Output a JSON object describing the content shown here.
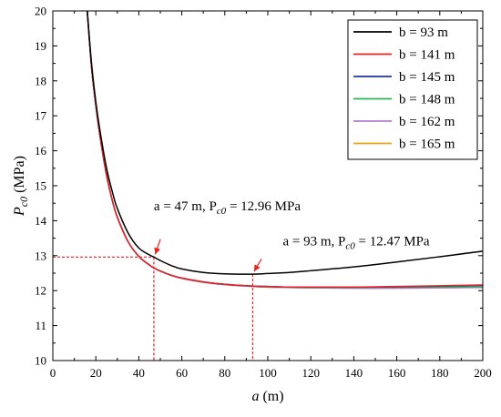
{
  "chart_data": {
    "type": "line",
    "title": "",
    "xlabel": "a",
    "xunit": "(m)",
    "ylabel_main": "P",
    "ylabel_sub": "c0",
    "yunit": "(MPa)",
    "xlim": [
      0,
      200
    ],
    "ylim": [
      10,
      20
    ],
    "xticks": [
      0,
      20,
      40,
      60,
      80,
      100,
      120,
      140,
      160,
      180,
      200
    ],
    "yticks": [
      10,
      11,
      12,
      13,
      14,
      15,
      16,
      17,
      18,
      19,
      20
    ],
    "grid": false,
    "legend_position": "top-right",
    "x": [
      16,
      18,
      20,
      22,
      25,
      28,
      30,
      35,
      40,
      45,
      47,
      50,
      55,
      60,
      70,
      80,
      93,
      100,
      110,
      120,
      140,
      160,
      180,
      200
    ],
    "series": [
      {
        "name": "b = 93 m",
        "color": "#000000",
        "values": [
          20.0,
          18.5,
          17.4,
          16.55,
          15.5,
          14.75,
          14.35,
          13.65,
          13.22,
          13.02,
          12.96,
          12.86,
          12.72,
          12.62,
          12.52,
          12.48,
          12.47,
          12.49,
          12.52,
          12.57,
          12.68,
          12.82,
          12.97,
          13.13
        ]
      },
      {
        "name": "b = 141 m",
        "color": "#e8231f",
        "values": [
          20.0,
          18.4,
          17.3,
          16.4,
          15.3,
          14.5,
          14.1,
          13.4,
          12.98,
          12.73,
          12.65,
          12.56,
          12.44,
          12.36,
          12.25,
          12.18,
          12.13,
          12.12,
          12.1,
          12.1,
          12.1,
          12.12,
          12.14,
          12.16
        ]
      },
      {
        "name": "b = 145 m",
        "color": "#1c2fc9",
        "values": [
          20.0,
          18.4,
          17.3,
          16.4,
          15.3,
          14.5,
          14.1,
          13.4,
          12.98,
          12.73,
          12.65,
          12.56,
          12.44,
          12.36,
          12.25,
          12.18,
          12.13,
          12.12,
          12.1,
          12.1,
          12.1,
          12.11,
          12.13,
          12.15
        ]
      },
      {
        "name": "b = 148 m",
        "color": "#2db35a",
        "values": [
          20.0,
          18.4,
          17.3,
          16.4,
          15.3,
          14.5,
          14.1,
          13.4,
          12.98,
          12.73,
          12.65,
          12.56,
          12.44,
          12.36,
          12.25,
          12.18,
          12.13,
          12.11,
          12.1,
          12.09,
          12.09,
          12.1,
          12.1,
          12.11
        ]
      },
      {
        "name": "b = 162 m",
        "color": "#b07fd4",
        "values": [
          20.0,
          18.4,
          17.3,
          16.4,
          15.3,
          14.5,
          14.1,
          13.4,
          12.98,
          12.73,
          12.65,
          12.56,
          12.44,
          12.35,
          12.24,
          12.17,
          12.12,
          12.1,
          12.09,
          12.08,
          12.07,
          12.07,
          12.08,
          12.09
        ]
      },
      {
        "name": "b = 165 m",
        "color": "#e8a317",
        "values": [
          20.0,
          18.4,
          17.3,
          16.4,
          15.3,
          14.5,
          14.1,
          13.4,
          12.98,
          12.73,
          12.65,
          12.56,
          12.44,
          12.35,
          12.24,
          12.17,
          12.12,
          12.1,
          12.09,
          12.08,
          12.07,
          12.07,
          12.08,
          12.09
        ]
      }
    ],
    "annotations": [
      {
        "x": 47,
        "y": 12.96,
        "prefix": "a = 47 m,  P",
        "sub": "c0",
        "suffix": " = 12.96 MPa",
        "color": "#e8231f",
        "label_x": 47,
        "label_y": 14.3
      },
      {
        "x": 93,
        "y": 12.47,
        "prefix": "a = 93 m,  P",
        "sub": "c0",
        "suffix": " = 12.47 MPa",
        "color": "#e8231f",
        "label_x": 107,
        "label_y": 13.3
      }
    ]
  }
}
